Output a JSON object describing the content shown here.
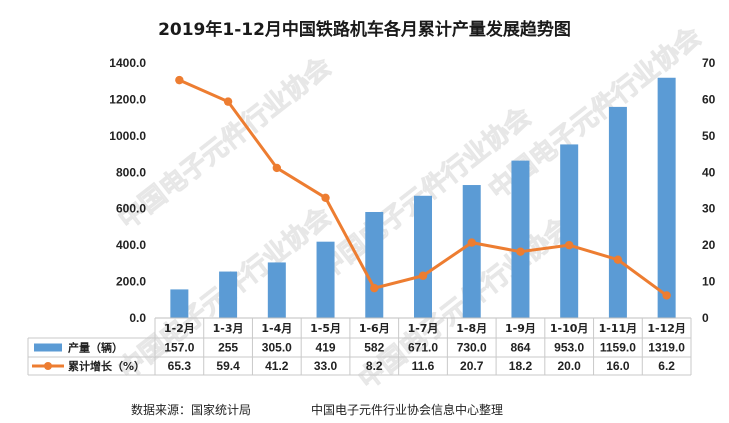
{
  "chart_data": {
    "type": "bar+line",
    "title": "2019年1-12月中国铁路机车各月累计产量发展趋势图",
    "categories": [
      "1-2月",
      "1-3月",
      "1-4月",
      "1-5月",
      "1-6月",
      "1-7月",
      "1-8月",
      "1-9月",
      "1-10月",
      "1-11月",
      "1-12月"
    ],
    "series": [
      {
        "name": "产量（辆）",
        "type": "bar",
        "axis": "left",
        "color": "#5b9bd5",
        "values": [
          157.0,
          255,
          305.0,
          419,
          582,
          671.0,
          730.0,
          864,
          953.0,
          1159.0,
          1319.0
        ],
        "labels": [
          "157.0",
          "255",
          "305.0",
          "419",
          "582",
          "671.0",
          "730.0",
          "864",
          "953.0",
          "1159.0",
          "1319.0"
        ]
      },
      {
        "name": "累计增长（%）",
        "type": "line",
        "axis": "right",
        "color": "#ed7d31",
        "values": [
          65.3,
          59.4,
          41.2,
          33.0,
          8.2,
          11.6,
          20.7,
          18.2,
          20.0,
          16.0,
          6.2
        ],
        "labels": [
          "65.3",
          "59.4",
          "41.2",
          "33.0",
          "8.2",
          "11.6",
          "20.7",
          "18.2",
          "20.0",
          "16.0",
          "6.2"
        ]
      }
    ],
    "y_left": {
      "min": 0,
      "max": 1400,
      "ticks": [
        "0.0",
        "200.0",
        "400.0",
        "600.0",
        "800.0",
        "1000.0",
        "1200.0",
        "1400.0"
      ]
    },
    "y_right": {
      "min": 0,
      "max": 70,
      "ticks": [
        "0",
        "10",
        "20",
        "30",
        "40",
        "50",
        "60",
        "70"
      ]
    },
    "grid": false,
    "legend": "data-table-bottom",
    "watermark": "中国电子元件行业协会"
  },
  "source_note": "数据来源：国家统计局",
  "org_note": "中国电子元件行业协会信息中心整理"
}
